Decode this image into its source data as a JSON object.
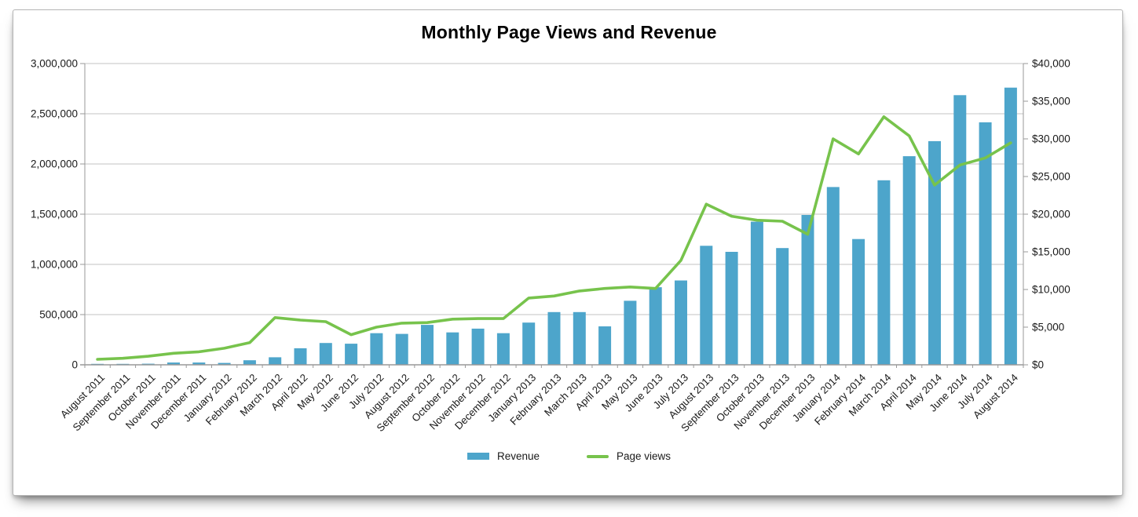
{
  "chart_data": {
    "type": "combo",
    "title": "Monthly Page Views and Revenue",
    "categories": [
      "August 2011",
      "September 2011",
      "October 2011",
      "November 2011",
      "December 2011",
      "January 2012",
      "February 2012",
      "March 2012",
      "April 2012",
      "May 2012",
      "June 2012",
      "July 2012",
      "August 2012",
      "September 2012",
      "October 2012",
      "November 2012",
      "December 2012",
      "January 2013",
      "February 2013",
      "March 2013",
      "April 2013",
      "May 2013",
      "June 2013",
      "July 2013",
      "August 2013",
      "September 2013",
      "October 2013",
      "November 2013",
      "December 2013",
      "January 2014",
      "February 2014",
      "March 2014",
      "April 2014",
      "May 2014",
      "June 2014",
      "July 2014",
      "August 2014"
    ],
    "series": [
      {
        "name": "Revenue",
        "type": "bar",
        "axis": "right",
        "color": "#4DA5CB",
        "values": [
          100,
          100,
          150,
          300,
          300,
          250,
          600,
          1000,
          2200,
          2900,
          2800,
          4200,
          4100,
          5300,
          4300,
          4800,
          4200,
          5600,
          7000,
          7000,
          5100,
          8500,
          10300,
          11200,
          15800,
          15000,
          19000,
          15500,
          19900,
          23600,
          16700,
          24500,
          27700,
          29700,
          35800,
          32200,
          36800
        ]
      },
      {
        "name": "Page views",
        "type": "line",
        "axis": "left",
        "color": "#77C34C",
        "values": [
          55000,
          65000,
          85000,
          115000,
          130000,
          165000,
          220000,
          470000,
          445000,
          430000,
          300000,
          375000,
          415000,
          420000,
          455000,
          460000,
          460000,
          665000,
          685000,
          735000,
          760000,
          775000,
          760000,
          1040000,
          1600000,
          1480000,
          1440000,
          1430000,
          1300000,
          2250000,
          2100000,
          2470000,
          2280000,
          1790000,
          1990000,
          2060000,
          2210000
        ]
      }
    ],
    "left_axis": {
      "min": 0,
      "max": 3000000,
      "step": 500000,
      "tick_labels": [
        "0",
        "500,000",
        "1,000,000",
        "1,500,000",
        "2,000,000",
        "2,500,000",
        "3,000,000"
      ]
    },
    "right_axis": {
      "min": 0,
      "max": 40000,
      "step": 5000,
      "tick_labels": [
        "$0",
        "$5,000",
        "$10,000",
        "$15,000",
        "$20,000",
        "$25,000",
        "$30,000",
        "$35,000",
        "$40,000"
      ]
    },
    "grid": true,
    "legend_position": "bottom",
    "colors": {
      "gridline": "#C3C3C3",
      "axis": "#999999",
      "text": "#1A1A1A",
      "card_border": "#B5B5B5",
      "background": "#FFFFFF"
    }
  }
}
